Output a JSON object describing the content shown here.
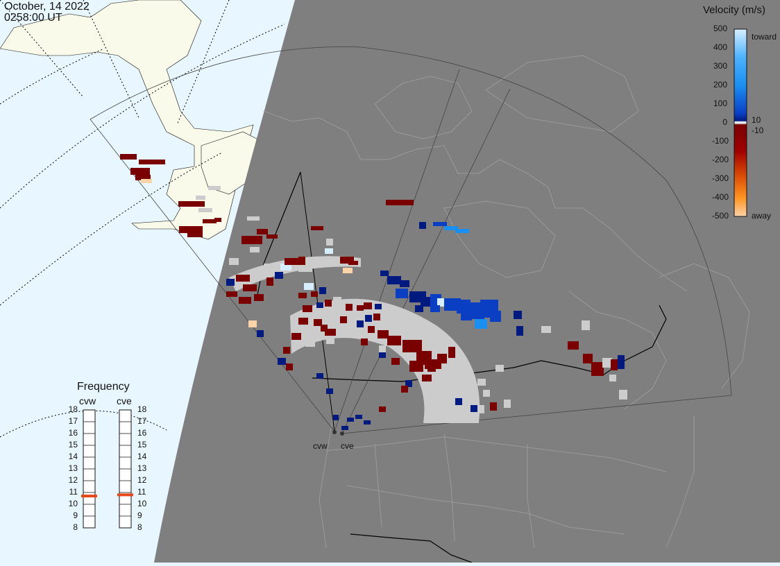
{
  "header": {
    "date": "October, 14 2022",
    "time": "0258:00 UT"
  },
  "colorbar": {
    "title": "Velocity (m/s)",
    "ticks": [
      "500",
      "400",
      "300",
      "200",
      "100",
      "0",
      "-100",
      "-200",
      "-300",
      "-400",
      "-500"
    ],
    "toward_label": "toward",
    "away_label": "away",
    "pos_threshold": "10",
    "neg_threshold": "-10",
    "colors": {
      "toward_light": "#d6eeff",
      "toward_mid": "#1a8ff2",
      "toward_dark": "#001a80",
      "away_dark": "#7a0000",
      "away_mid": "#d84a06",
      "away_light": "#ffd3a8",
      "ground_scatter": "#cccccc"
    }
  },
  "frequency": {
    "title": "Frequency",
    "radars": [
      {
        "name": "cvw",
        "value_mhz": 10.7
      },
      {
        "name": "cve",
        "value_mhz": 10.8
      }
    ],
    "ticks": [
      "18",
      "17",
      "16",
      "15",
      "14",
      "13",
      "12",
      "11",
      "10",
      "9",
      "8"
    ],
    "marker_color": "#e8461b"
  },
  "sites": [
    {
      "label": "cvw"
    },
    {
      "label": "cve"
    }
  ],
  "map_colors": {
    "night": "#7f7f7f",
    "day_ocean": "#e8f6ff",
    "day_land": "#fafaea",
    "night_lines": "#9a9a9a"
  }
}
